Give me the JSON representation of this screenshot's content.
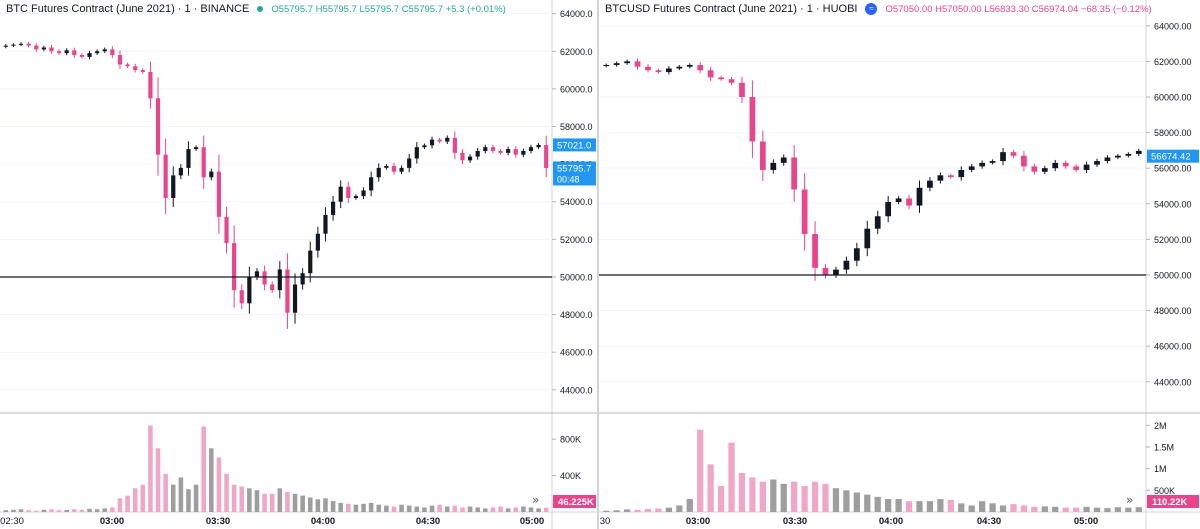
{
  "colors": {
    "up": "#131722",
    "down": "#e8458c",
    "volUp": "#9e9e9e",
    "volDown": "#f0a6c6",
    "grid": "#f0f3fa",
    "axisText": "#131722",
    "label": "#2196f3",
    "volLabel": "#e8458c"
  },
  "icons": {
    "left_status": "status-dot-icon",
    "right_exchange": "huobi-logo-icon",
    "scroll": "double-chevron-right-icon"
  },
  "chart_data": [
    {
      "type": "candlestick",
      "title": "BTC Futures Contract (June 2021) · 1 · BINANCE",
      "ohlc_text": "O55795.7 H55795.7 L55795.7 C55795.7 +5.3 (+0.01%)",
      "yticks": [
        "64000.0",
        "62000.0",
        "60000.0",
        "58000.0",
        "56000.0",
        "54000.0",
        "52000.0",
        "50000.0",
        "48000.0",
        "46000.0",
        "44000.0"
      ],
      "ylim": [
        43300,
        64300
      ],
      "hline": 50000,
      "price_labels": [
        {
          "text": "57021.0",
          "value": 57021
        },
        {
          "text": "55795.7",
          "value": 55795.7,
          "sub": "00:48"
        }
      ],
      "xticks": [
        "02:30",
        "03:00",
        "03:30",
        "04:00",
        "04:30",
        "05:00"
      ],
      "volume_ticks": [
        "800K",
        "400K"
      ],
      "volume_ylim": [
        0,
        1000000
      ],
      "volume_label": "46.225K",
      "closes": [
        62300,
        62350,
        62400,
        62300,
        62100,
        62200,
        62000,
        61900,
        62050,
        61800,
        61700,
        61900,
        62000,
        62100,
        61800,
        61300,
        61200,
        61000,
        60900,
        59500,
        56500,
        54200,
        55400,
        55800,
        56800,
        56900,
        55300,
        55600,
        53200,
        51800,
        49300,
        48600,
        50000,
        50300,
        49600,
        49300,
        50400,
        48100,
        49600,
        50200,
        51400,
        52300,
        53300,
        54000,
        54800,
        54200,
        54300,
        54600,
        55300,
        55800,
        55900,
        55600,
        55800,
        56300,
        56900,
        57000,
        57300,
        57200,
        57400,
        56600,
        56200,
        56400,
        56700,
        56900,
        56700,
        56600,
        56800,
        56500,
        56700,
        56900,
        57021,
        55795.7
      ],
      "volumes": [
        20000,
        25000,
        30000,
        20000,
        15000,
        25000,
        30000,
        20000,
        22000,
        30000,
        25000,
        35000,
        30000,
        40000,
        50000,
        150000,
        180000,
        260000,
        300000,
        950000,
        700000,
        420000,
        300000,
        380000,
        250000,
        300000,
        940000,
        700000,
        600000,
        420000,
        300000,
        280000,
        260000,
        240000,
        200000,
        200000,
        260000,
        220000,
        200000,
        180000,
        160000,
        140000,
        150000,
        120000,
        100000,
        90000,
        80000,
        90000,
        100000,
        80000,
        70000,
        60000,
        80000,
        70000,
        60000,
        50000,
        70000,
        80000,
        60000,
        70000,
        50000,
        60000,
        50000,
        40000,
        50000,
        60000,
        40000,
        50000,
        60000,
        50000,
        40000,
        46225
      ]
    },
    {
      "type": "candlestick",
      "title": "BTCUSD Futures Contract (June 2021) · 1 · HUOBI",
      "ohlc_text": "O57050.00 H57050.00 L56833.30 C56974.04 −68.35 (−0.12%)",
      "yticks": [
        "64000.00",
        "62000.00",
        "60000.00",
        "58000.00",
        "56000.00",
        "54000.00",
        "52000.00",
        "50000.00",
        "48000.00",
        "46000.00",
        "44000.00"
      ],
      "ylim": [
        43200,
        65000
      ],
      "hline": 50000,
      "price_labels": [
        {
          "text": "56674.42",
          "value": 56674.42
        }
      ],
      "xticks": [
        "30",
        "03:00",
        "03:30",
        "04:00",
        "04:30",
        "05:00"
      ],
      "volume_ticks": [
        "2M",
        "1.5M",
        "1M",
        "500K"
      ],
      "volume_ylim": [
        0,
        2100000
      ],
      "volume_label": "110.22K",
      "closes": [
        61800,
        61900,
        62000,
        61700,
        61500,
        61400,
        61600,
        61700,
        61800,
        61500,
        61100,
        61000,
        60800,
        60000,
        57500,
        55900,
        56300,
        56600,
        54800,
        52300,
        50400,
        50000,
        50300,
        50800,
        51500,
        52600,
        53300,
        54100,
        54300,
        53900,
        54900,
        55300,
        55600,
        55500,
        55900,
        56100,
        56300,
        56400,
        56900,
        56700,
        56100,
        55800,
        56000,
        56300,
        56100,
        55900,
        56200,
        56400,
        56600,
        56700,
        56800,
        56974.04
      ],
      "volumes": [
        30000,
        40000,
        60000,
        50000,
        70000,
        80000,
        100000,
        150000,
        300000,
        1900000,
        1100000,
        600000,
        1600000,
        900000,
        800000,
        700000,
        750000,
        650000,
        700000,
        600000,
        700000,
        650000,
        550000,
        500000,
        450000,
        400000,
        350000,
        300000,
        300000,
        250000,
        250000,
        250000,
        300000,
        280000,
        200000,
        150000,
        250000,
        200000,
        150000,
        180000,
        150000,
        120000,
        130000,
        120000,
        100000,
        100000,
        120000,
        100000,
        90000,
        110220,
        100000,
        110220
      ]
    }
  ]
}
